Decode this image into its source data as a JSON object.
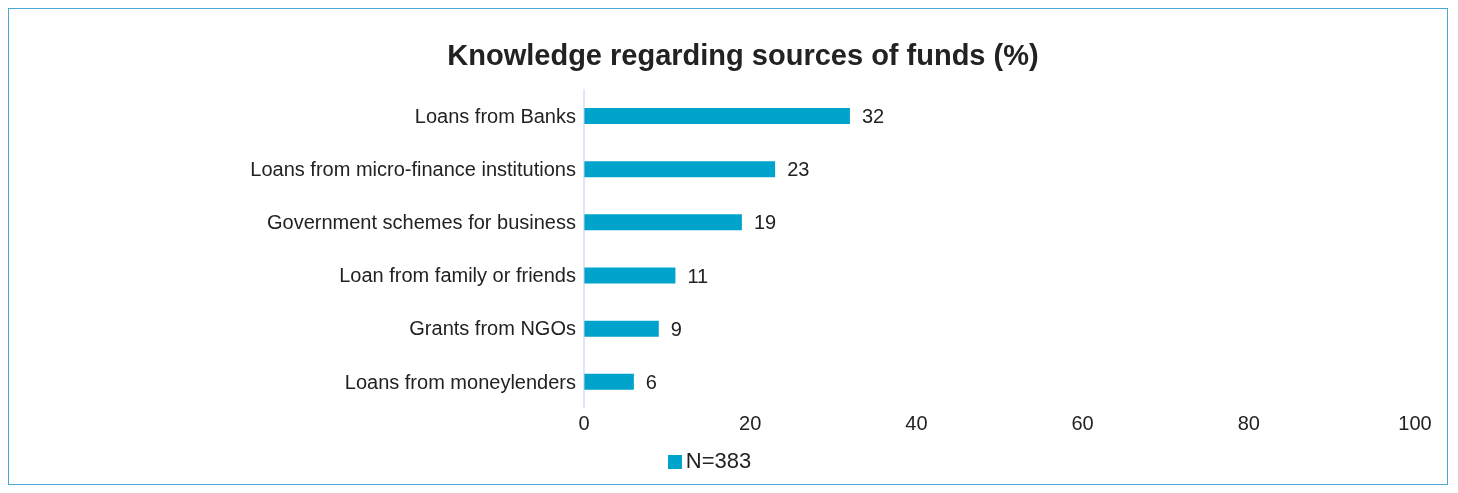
{
  "chart_data": {
    "type": "bar",
    "orientation": "horizontal",
    "title": "Knowledge regarding sources of funds (%)",
    "categories": [
      "Loans from Banks",
      "Loans from micro-finance institutions",
      "Government schemes for business",
      "Loan from family or friends",
      "Grants from NGOs",
      "Loans from moneylenders"
    ],
    "series": [
      {
        "name": "N=383",
        "color": "#00a3cc",
        "values": [
          32,
          23,
          19,
          11,
          9,
          6
        ]
      }
    ],
    "xlim": [
      0,
      100
    ],
    "xticks": [
      0,
      20,
      40,
      60,
      80,
      100
    ],
    "grid": false,
    "legend": "bottom",
    "data_labels": true
  }
}
